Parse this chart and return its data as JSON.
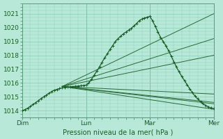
{
  "xlabel": "Pression niveau de la mer( hPa )",
  "ylim": [
    1013.8,
    1021.4
  ],
  "xlim": [
    0,
    72
  ],
  "day_labels": [
    "Dim",
    "Lun",
    "Mar",
    "Mer"
  ],
  "day_positions": [
    0,
    24,
    48,
    72
  ],
  "yticks": [
    1014,
    1015,
    1016,
    1017,
    1018,
    1019,
    1020,
    1021
  ],
  "bg_color": "#b8e8d8",
  "grid_color": "#88ccb8",
  "line_color": "#1a5c28",
  "spine_color": "#5a9a7a",
  "fan_origin_x": 15,
  "fan_origin_y": 1015.75,
  "fan_lines": [
    [
      1015.75,
      1021.0
    ],
    [
      1015.75,
      1019.2
    ],
    [
      1015.75,
      1018.0
    ],
    [
      1015.75,
      1015.2
    ],
    [
      1015.75,
      1014.5
    ],
    [
      1015.75,
      1014.1
    ],
    [
      1015.75,
      1014.6
    ]
  ],
  "main_x": [
    0,
    1,
    2,
    3,
    4,
    5,
    6,
    7,
    8,
    9,
    10,
    11,
    12,
    13,
    14,
    15,
    16,
    17,
    18,
    19,
    20,
    21,
    22,
    23,
    24,
    25,
    26,
    27,
    28,
    29,
    30,
    31,
    32,
    33,
    34,
    35,
    36,
    37,
    38,
    39,
    40,
    41,
    42,
    43,
    44,
    45,
    46,
    47,
    48,
    49,
    50,
    51,
    52,
    53,
    54,
    55,
    56,
    57,
    58,
    59,
    60,
    61,
    62,
    63,
    64,
    65,
    66,
    67,
    68,
    69,
    70,
    71,
    72
  ],
  "main_y": [
    1014.0,
    1014.08,
    1014.18,
    1014.3,
    1014.45,
    1014.58,
    1014.72,
    1014.87,
    1015.0,
    1015.12,
    1015.25,
    1015.38,
    1015.48,
    1015.54,
    1015.6,
    1015.65,
    1015.68,
    1015.7,
    1015.72,
    1015.74,
    1015.76,
    1015.78,
    1015.8,
    1015.82,
    1015.85,
    1016.0,
    1016.25,
    1016.55,
    1016.85,
    1017.15,
    1017.5,
    1017.82,
    1018.12,
    1018.42,
    1018.7,
    1019.0,
    1019.2,
    1019.38,
    1019.55,
    1019.68,
    1019.82,
    1019.95,
    1020.12,
    1020.3,
    1020.5,
    1020.62,
    1020.7,
    1020.75,
    1020.82,
    1020.5,
    1020.1,
    1019.7,
    1019.3,
    1019.0,
    1018.7,
    1018.35,
    1017.95,
    1017.55,
    1017.15,
    1016.8,
    1016.48,
    1016.18,
    1015.88,
    1015.58,
    1015.3,
    1015.05,
    1014.85,
    1014.65,
    1014.5,
    1014.38,
    1014.28,
    1014.2,
    1014.15
  ]
}
